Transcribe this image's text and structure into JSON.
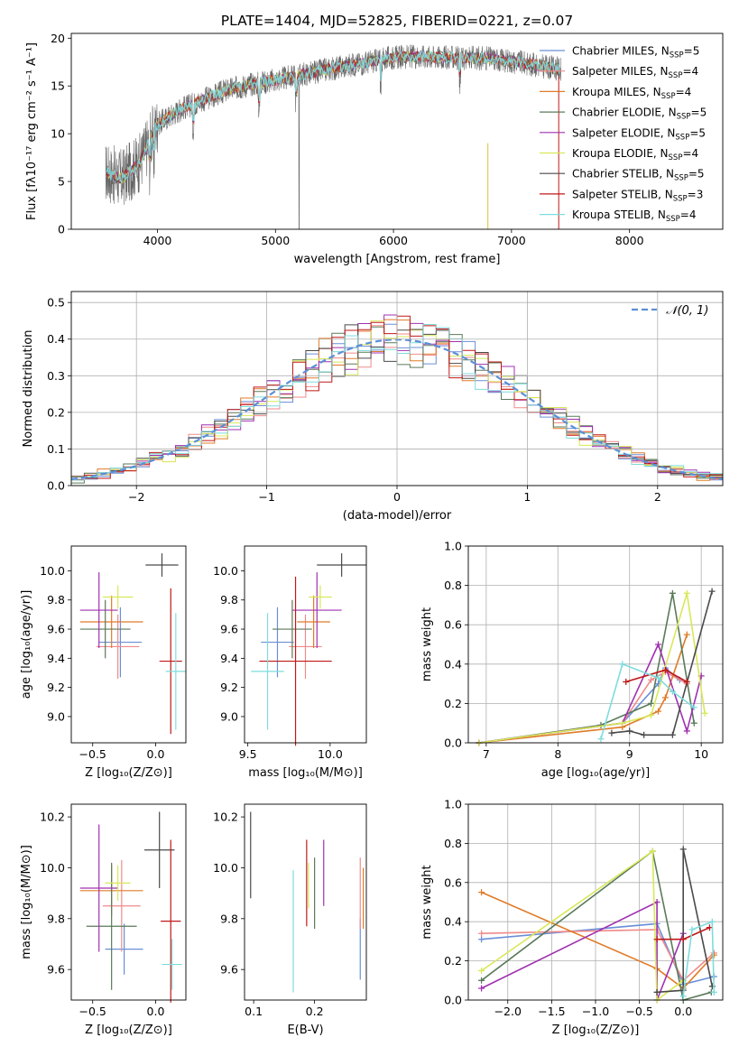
{
  "figure_title": "PLATE=1404, MJD=52825, FIBERID=0221, z=0.07",
  "chart_data": [
    {
      "id": "spectrum",
      "type": "line",
      "xlabel": "wavelength [Angstrom, rest frame]",
      "ylabel": "Flux [fλ10⁻¹⁷ erg cm⁻² s⁻¹ A⁻¹]",
      "xlim": [
        3270,
        8790
      ],
      "ylim": [
        0,
        20.5
      ],
      "xticks": [
        4000,
        5000,
        6000,
        7000,
        8000
      ],
      "yticks": [
        0,
        5,
        10,
        15,
        20
      ],
      "observed_continuum": {
        "x": [
          3550,
          3700,
          3850,
          4000,
          4200,
          4400,
          4600,
          4800,
          5000,
          5200,
          5400,
          5600,
          5800,
          6000,
          6200,
          6400,
          6600,
          6800,
          7000,
          7200,
          7400
        ],
        "y": [
          6.0,
          5.3,
          7.0,
          11.0,
          12.6,
          13.6,
          14.6,
          15.2,
          15.6,
          16.1,
          16.6,
          17.1,
          17.5,
          18.0,
          18.1,
          18.0,
          17.9,
          17.9,
          17.6,
          17.2,
          16.8
        ]
      },
      "series": [
        {
          "name": "Chabrier MILES, N_SSP=5",
          "color": "#6a8fd8"
        },
        {
          "name": "Salpeter MILES, N_SSP=4",
          "color": "#f08a8a"
        },
        {
          "name": "Kroupa MILES, N_SSP=4",
          "color": "#e07b28"
        },
        {
          "name": "Chabrier ELODIE, N_SSP=5",
          "color": "#5a7a5a"
        },
        {
          "name": "Salpeter ELODIE, N_SSP=5",
          "color": "#a030b0"
        },
        {
          "name": "Kroupa ELODIE, N_SSP=4",
          "color": "#d8e858"
        },
        {
          "name": "Chabrier STELIB, N_SSP=5",
          "color": "#4a4a4a"
        },
        {
          "name": "Salpeter STELIB, N_SSP=3",
          "color": "#c01818"
        },
        {
          "name": "Kroupa STELIB, N_SSP=4",
          "color": "#7fdcdc"
        }
      ],
      "legend_position": "right"
    },
    {
      "id": "residuals",
      "type": "histogram",
      "xlabel": "(data-model)/error",
      "ylabel": "Normed distribution",
      "xlim": [
        -2.5,
        2.5
      ],
      "ylim": [
        0,
        0.53
      ],
      "xticks": [
        -2,
        -1,
        0,
        1,
        2
      ],
      "yticks": [
        0.0,
        0.1,
        0.2,
        0.3,
        0.4,
        0.5
      ],
      "grid": true,
      "legend": {
        "label": "𝒩(0, 1)",
        "style": "dashed",
        "color": "#5b8fd8",
        "position": "top-right"
      },
      "bin_width": 0.1,
      "bin_start": -2.5
    },
    {
      "id": "age-vs-Z",
      "type": "errorbar",
      "xlabel": "Z [log₁₀(Z/Z⊙)]",
      "ylabel": "age  [log₁₀(age/yr)]",
      "xlim": [
        -0.67,
        0.24
      ],
      "ylim": [
        8.82,
        10.17
      ],
      "xticks": [
        -0.5,
        0.0
      ],
      "yticks": [
        9.0,
        9.2,
        9.4,
        9.6,
        9.8,
        10.0
      ],
      "points": [
        {
          "series": "Chabrier MILES",
          "x": -0.28,
          "y": 9.51,
          "xerr": 0.17,
          "yerr": 0.24
        },
        {
          "series": "Salpeter MILES",
          "x": -0.3,
          "y": 9.48,
          "xerr": 0.17,
          "yerr": 0.22
        },
        {
          "series": "Kroupa MILES",
          "x": -0.35,
          "y": 9.65,
          "xerr": 0.25,
          "yerr": 0.18
        },
        {
          "series": "Chabrier ELODIE",
          "x": -0.4,
          "y": 9.6,
          "xerr": 0.2,
          "yerr": 0.2
        },
        {
          "series": "Salpeter ELODIE",
          "x": -0.45,
          "y": 9.73,
          "xerr": 0.15,
          "yerr": 0.26
        },
        {
          "series": "Kroupa ELODIE",
          "x": -0.3,
          "y": 9.82,
          "xerr": 0.12,
          "yerr": 0.08
        },
        {
          "series": "Chabrier STELIB",
          "x": 0.05,
          "y": 10.04,
          "xerr": 0.13,
          "yerr": 0.08
        },
        {
          "series": "Salpeter STELIB",
          "x": 0.12,
          "y": 9.38,
          "xerr": 0.09,
          "yerr": 0.5
        },
        {
          "series": "Kroupa STELIB",
          "x": 0.16,
          "y": 9.31,
          "xerr": 0.08,
          "yerr": 0.4
        }
      ]
    },
    {
      "id": "age-vs-mass",
      "type": "errorbar",
      "xlabel": "mass [log₁₀(M/M⊙)]",
      "ylabel": "",
      "xlim": [
        9.48,
        10.22
      ],
      "ylim": [
        8.82,
        10.17
      ],
      "xticks": [
        9.5,
        10.0
      ],
      "yticks": [
        9.0,
        9.2,
        9.4,
        9.6,
        9.8,
        10.0
      ],
      "points": [
        {
          "series": "Chabrier MILES",
          "x": 9.68,
          "y": 9.51,
          "xerr": 0.1,
          "yerr": 0.24
        },
        {
          "series": "Salpeter MILES",
          "x": 9.85,
          "y": 9.48,
          "xerr": 0.1,
          "yerr": 0.22
        },
        {
          "series": "Kroupa MILES",
          "x": 9.9,
          "y": 9.65,
          "xerr": 0.1,
          "yerr": 0.18
        },
        {
          "series": "Chabrier ELODIE",
          "x": 9.77,
          "y": 9.6,
          "xerr": 0.12,
          "yerr": 0.2
        },
        {
          "series": "Salpeter ELODIE",
          "x": 9.92,
          "y": 9.73,
          "xerr": 0.15,
          "yerr": 0.26
        },
        {
          "series": "Kroupa ELODIE",
          "x": 9.94,
          "y": 9.82,
          "xerr": 0.07,
          "yerr": 0.08
        },
        {
          "series": "Chabrier STELIB",
          "x": 10.07,
          "y": 10.04,
          "xerr": 0.15,
          "yerr": 0.08
        },
        {
          "series": "Salpeter STELIB",
          "x": 9.79,
          "y": 9.38,
          "xerr": 0.22,
          "yerr": 0.58
        },
        {
          "series": "Kroupa STELIB",
          "x": 9.62,
          "y": 9.31,
          "xerr": 0.1,
          "yerr": 0.4
        }
      ]
    },
    {
      "id": "massweight-vs-age",
      "type": "line",
      "xlabel": "age  [log₁₀(age/yr)]",
      "ylabel": "mass weight",
      "xlim": [
        6.75,
        10.3
      ],
      "ylim": [
        0.0,
        1.0
      ],
      "xticks": [
        7,
        8,
        9,
        10
      ],
      "yticks": [
        0.0,
        0.2,
        0.4,
        0.6,
        0.8,
        1.0
      ],
      "grid": true,
      "series": [
        {
          "name": "Chabrier MILES",
          "x": [
            6.9,
            8.9,
            9.4,
            9.5,
            9.7
          ],
          "y": [
            0.0,
            0.1,
            0.3,
            0.38,
            0.32
          ]
        },
        {
          "name": "Salpeter MILES",
          "x": [
            6.9,
            8.9,
            9.3,
            9.5,
            9.8
          ],
          "y": [
            0.0,
            0.1,
            0.32,
            0.36,
            0.3
          ]
        },
        {
          "name": "Kroupa MILES",
          "x": [
            6.9,
            8.9,
            9.4,
            9.5,
            9.8
          ],
          "y": [
            0.0,
            0.08,
            0.16,
            0.23,
            0.55
          ]
        },
        {
          "name": "Chabrier ELODIE",
          "x": [
            6.9,
            8.6,
            9.3,
            9.6,
            9.9
          ],
          "y": [
            0.0,
            0.09,
            0.2,
            0.76,
            0.1
          ]
        },
        {
          "name": "Salpeter ELODIE",
          "x": [
            6.9,
            8.9,
            9.4,
            9.8,
            10.0
          ],
          "y": [
            0.0,
            0.1,
            0.5,
            0.06,
            0.34
          ]
        },
        {
          "name": "Kroupa ELODIE",
          "x": [
            6.9,
            8.9,
            9.3,
            9.8,
            10.05
          ],
          "y": [
            0.0,
            0.1,
            0.14,
            0.76,
            0.15
          ]
        },
        {
          "name": "Chabrier STELIB",
          "x": [
            8.75,
            9.0,
            9.2,
            9.6,
            10.15
          ],
          "y": [
            0.05,
            0.06,
            0.04,
            0.04,
            0.77
          ]
        },
        {
          "name": "Salpeter STELIB",
          "x": [
            8.95,
            9.5,
            9.8
          ],
          "y": [
            0.31,
            0.37,
            0.31
          ]
        },
        {
          "name": "Kroupa STELIB",
          "x": [
            8.6,
            8.9,
            9.4,
            9.6,
            9.9
          ],
          "y": [
            0.02,
            0.4,
            0.33,
            0.26,
            0.18
          ]
        }
      ]
    },
    {
      "id": "mass-vs-Z",
      "type": "errorbar",
      "xlabel": "Z [log₁₀(Z/Z⊙)]",
      "ylabel": "mass [log₁₀(M/M⊙)]",
      "xlim": [
        -0.67,
        0.24
      ],
      "ylim": [
        9.48,
        10.25
      ],
      "xticks": [
        -0.5,
        0.0
      ],
      "yticks": [
        9.6,
        9.8,
        10.0,
        10.2
      ],
      "points": [
        {
          "series": "Chabrier MILES",
          "x": -0.25,
          "y": 9.68,
          "xerr": 0.15,
          "yerr": 0.1
        },
        {
          "series": "Salpeter MILES",
          "x": -0.27,
          "y": 9.85,
          "xerr": 0.15,
          "yerr": 0.18
        },
        {
          "series": "Kroupa MILES",
          "x": -0.35,
          "y": 9.91,
          "xerr": 0.25,
          "yerr": 0.1
        },
        {
          "series": "Chabrier ELODIE",
          "x": -0.35,
          "y": 9.77,
          "xerr": 0.2,
          "yerr": 0.25
        },
        {
          "series": "Salpeter ELODIE",
          "x": -0.45,
          "y": 9.92,
          "xerr": 0.15,
          "yerr": 0.25
        },
        {
          "series": "Kroupa ELODIE",
          "x": -0.3,
          "y": 9.94,
          "xerr": 0.1,
          "yerr": 0.07
        },
        {
          "series": "Chabrier STELIB",
          "x": 0.03,
          "y": 10.07,
          "xerr": 0.12,
          "yerr": 0.15
        },
        {
          "series": "Salpeter STELIB",
          "x": 0.12,
          "y": 9.79,
          "xerr": 0.08,
          "yerr": 0.32
        },
        {
          "series": "Kroupa STELIB",
          "x": 0.13,
          "y": 9.62,
          "xerr": 0.08,
          "yerr": 0.1
        }
      ]
    },
    {
      "id": "mass-vs-ebv",
      "type": "errorbar",
      "xlabel": "E(B-V)",
      "ylabel": "",
      "xlim": [
        0.085,
        0.285
      ],
      "ylim": [
        9.48,
        10.25
      ],
      "xticks": [
        0.1,
        0.2
      ],
      "yticks": [
        9.6,
        9.8,
        10.0,
        10.2
      ],
      "points": [
        {
          "series": "Chabrier MILES",
          "x": 0.275,
          "y": 9.68,
          "xerr": 0.0,
          "yerr": 0.12
        },
        {
          "series": "Salpeter MILES",
          "x": 0.275,
          "y": 9.9,
          "xerr": 0.0,
          "yerr": 0.14
        },
        {
          "series": "Kroupa MILES",
          "x": 0.28,
          "y": 9.88,
          "xerr": 0.0,
          "yerr": 0.12
        },
        {
          "series": "Chabrier ELODIE",
          "x": 0.2,
          "y": 9.9,
          "xerr": 0.0,
          "yerr": 0.14
        },
        {
          "series": "Salpeter ELODIE",
          "x": 0.215,
          "y": 9.98,
          "xerr": 0.0,
          "yerr": 0.13
        },
        {
          "series": "Kroupa ELODIE",
          "x": 0.19,
          "y": 9.93,
          "xerr": 0.0,
          "yerr": 0.09
        },
        {
          "series": "Chabrier STELIB",
          "x": 0.095,
          "y": 10.05,
          "xerr": 0.0,
          "yerr": 0.17
        },
        {
          "series": "Salpeter STELIB",
          "x": 0.187,
          "y": 9.94,
          "xerr": 0.0,
          "yerr": 0.17
        },
        {
          "series": "Kroupa STELIB",
          "x": 0.165,
          "y": 9.75,
          "xerr": 0.0,
          "yerr": 0.24
        }
      ]
    },
    {
      "id": "massweight-vs-Z",
      "type": "line",
      "xlabel": "Z [log₁₀(Z/Z⊙)]",
      "ylabel": "mass weight",
      "xlim": [
        -2.45,
        0.45
      ],
      "ylim": [
        0.0,
        1.0
      ],
      "xticks": [
        -2.0,
        -1.5,
        -1.0,
        -0.5,
        0.0
      ],
      "yticks": [
        0.0,
        0.2,
        0.4,
        0.6,
        0.8,
        1.0
      ],
      "grid": true,
      "series": [
        {
          "name": "Chabrier MILES",
          "x": [
            -2.3,
            -0.3,
            0.0,
            0.35
          ],
          "y": [
            0.31,
            0.39,
            0.08,
            0.12
          ]
        },
        {
          "name": "Salpeter MILES",
          "x": [
            -2.3,
            -0.3,
            0.0,
            0.35
          ],
          "y": [
            0.34,
            0.36,
            0.1,
            0.24
          ]
        },
        {
          "name": "Kroupa MILES",
          "x": [
            -2.3,
            -0.3,
            0.0,
            0.35
          ],
          "y": [
            0.55,
            0.16,
            0.06,
            0.23
          ]
        },
        {
          "name": "Chabrier ELODIE",
          "x": [
            -2.3,
            -0.35,
            0.0,
            0.32
          ],
          "y": [
            0.1,
            0.76,
            0.0,
            0.04
          ]
        },
        {
          "name": "Salpeter ELODIE",
          "x": [
            -2.3,
            -0.3,
            -0.3,
            0.0
          ],
          "y": [
            0.06,
            0.5,
            0.0,
            0.34
          ]
        },
        {
          "name": "Kroupa ELODIE",
          "x": [
            -2.3,
            -0.35,
            -0.3,
            0.0
          ],
          "y": [
            0.15,
            0.76,
            0.0,
            0.1
          ]
        },
        {
          "name": "Chabrier STELIB",
          "x": [
            -0.3,
            0.0,
            0.0,
            0.33
          ],
          "y": [
            0.04,
            0.05,
            0.77,
            0.07
          ]
        },
        {
          "name": "Salpeter STELIB",
          "x": [
            -0.3,
            0.0,
            0.3
          ],
          "y": [
            0.31,
            0.31,
            0.37
          ]
        },
        {
          "name": "Kroupa STELIB",
          "x": [
            0.0,
            0.1,
            0.33,
            0.35
          ],
          "y": [
            0.02,
            0.36,
            0.4,
            0.04
          ]
        }
      ]
    }
  ]
}
